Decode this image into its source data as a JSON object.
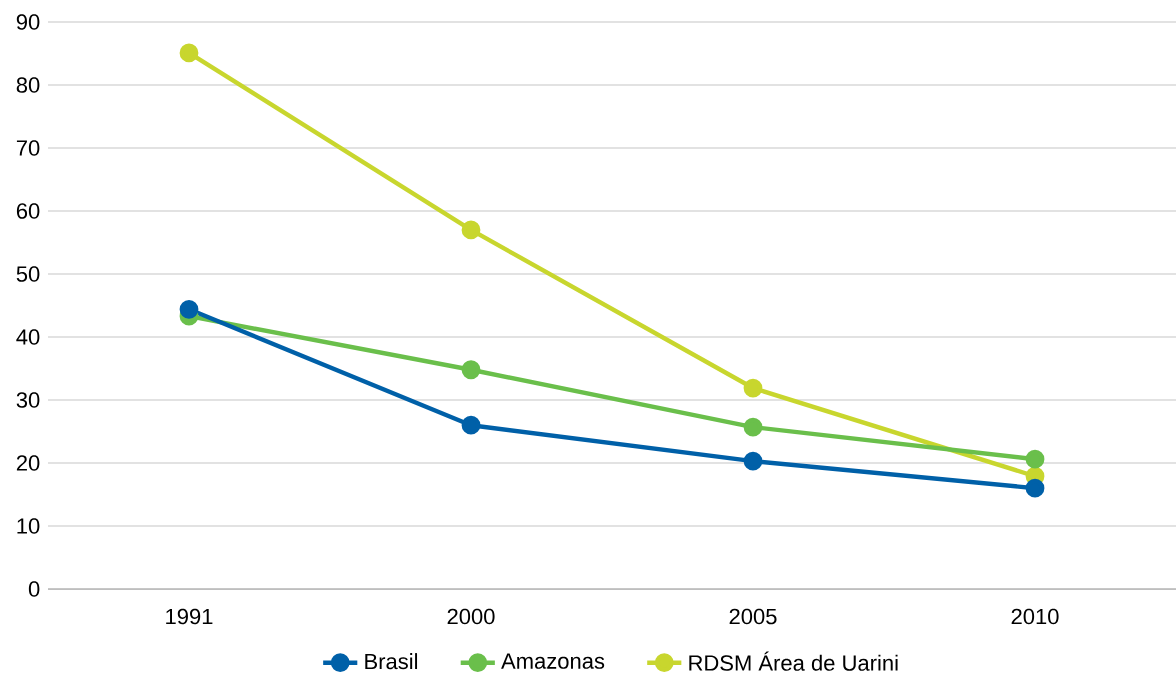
{
  "chart_data": {
    "type": "line",
    "categories": [
      "1991",
      "2000",
      "2005",
      "2010"
    ],
    "series": [
      {
        "name": "Brasil",
        "color": "#0060a8",
        "values": [
          44.4,
          26.0,
          20.3,
          16.0
        ]
      },
      {
        "name": "Amazonas",
        "color": "#6abf4b",
        "values": [
          43.3,
          34.8,
          25.7,
          20.6
        ]
      },
      {
        "name": "RDSM Área de Uarini",
        "color": "#c8d62e",
        "values": [
          85.1,
          57.0,
          31.9,
          17.9
        ]
      }
    ],
    "ylim": [
      0,
      90
    ],
    "yticks": [
      0,
      10,
      20,
      30,
      40,
      50,
      60,
      70,
      80,
      90
    ],
    "grid": "y",
    "legend": "bottom",
    "marker": "circle",
    "line_style": "solid"
  }
}
